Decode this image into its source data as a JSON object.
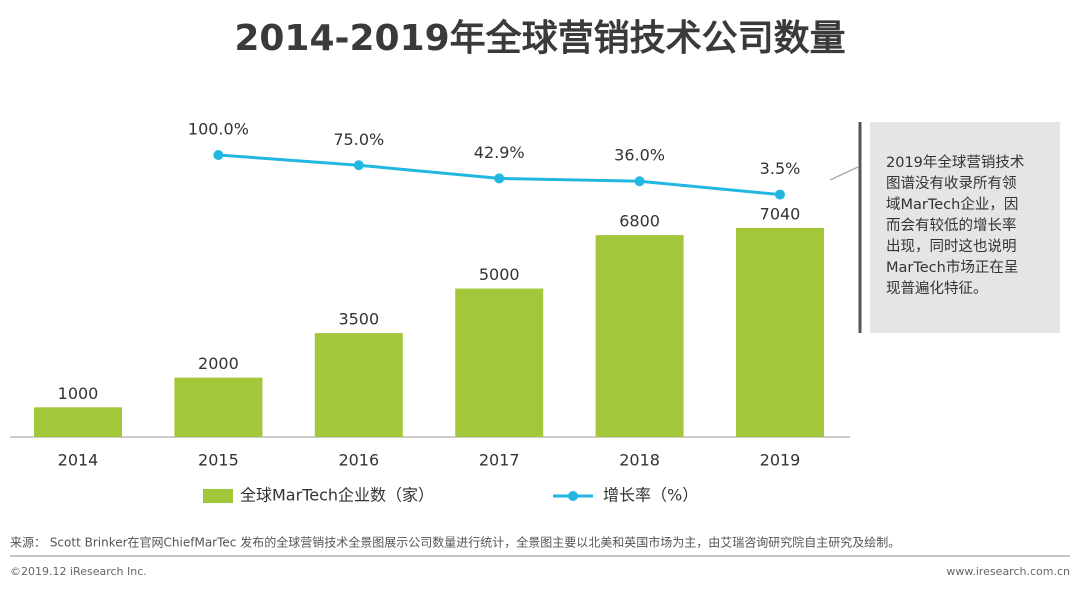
{
  "chart_data": {
    "type": "bar-line",
    "title": "2014-2019年全球营销技术公司数量",
    "categories": [
      "2014",
      "2015",
      "2016",
      "2017",
      "2018",
      "2019"
    ],
    "series": [
      {
        "name": "全球MarTech企业数（家）",
        "type": "bar",
        "color": "#a2c73b",
        "values": [
          1000,
          2000,
          3500,
          5000,
          6800,
          7040
        ]
      },
      {
        "name": "增长率（%）",
        "type": "line",
        "axis": "y2",
        "color": "#21b7e0",
        "values": [
          null,
          100.0,
          75.0,
          42.9,
          36.0,
          3.5
        ],
        "value_labels": [
          null,
          "100.0%",
          "75.0%",
          "42.9%",
          "36.0%",
          "3.5%"
        ]
      }
    ],
    "annotation": [
      "2019年全球营销技术",
      "图谱没有收录所有领",
      "域MarTech企业，因",
      "而会有较低的增长率",
      "出现，同时这也说明",
      "MarTech市场正在呈",
      "现普遍化特征。"
    ],
    "source": "来源： Scott Brinker在官网ChiefMarTec 发布的全球营销技术全景图展示公司数量进行统计，全景图主要以北美和英国市场为主，由艾瑞咨询研究院自主研究及绘制。",
    "footer_left": "©2019.12 iResearch Inc.",
    "footer_right": "www.iresearch.com.cn"
  }
}
